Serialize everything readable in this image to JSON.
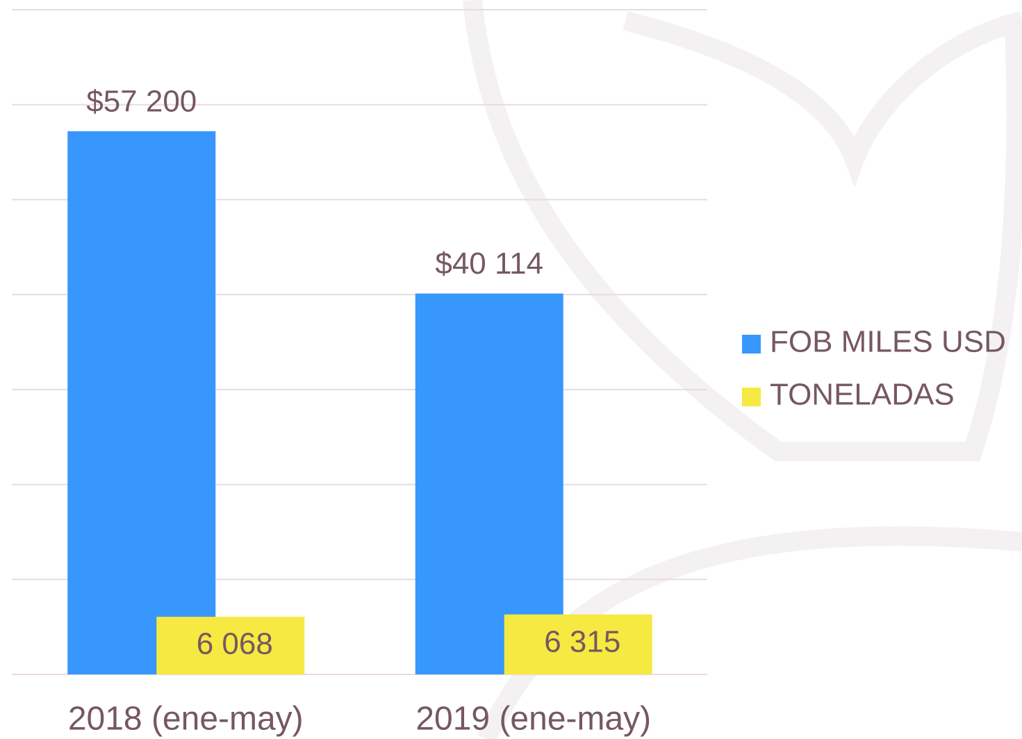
{
  "chart_data": {
    "type": "bar",
    "categories": [
      "2018 (ene-may)",
      "2019 (ene-may)"
    ],
    "series": [
      {
        "name": "FOB MILES USD",
        "color": "#3797fd",
        "values": [
          57200,
          40114
        ],
        "value_labels": [
          "$57 200",
          "$40 114"
        ]
      },
      {
        "name": "TONELADAS",
        "color": "#f5e942",
        "values": [
          6068,
          6315
        ],
        "value_labels": [
          "6 068",
          "6 315"
        ]
      }
    ],
    "ylim": [
      0,
      70000
    ],
    "yticks": [
      0,
      10000,
      20000,
      30000,
      40000,
      50000,
      60000,
      70000
    ],
    "grid": true,
    "legend": "right"
  }
}
